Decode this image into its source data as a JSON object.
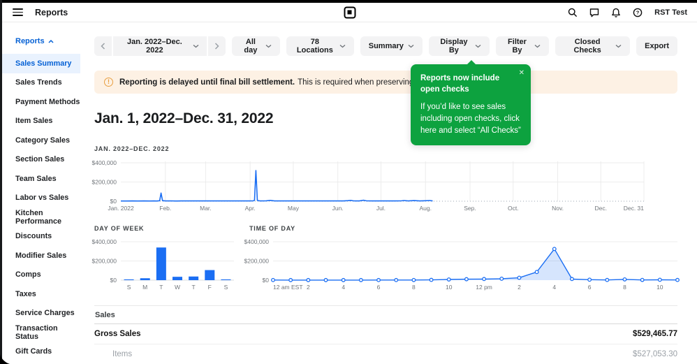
{
  "header": {
    "title": "Reports",
    "account": "RST Test"
  },
  "sidebar": {
    "section_label": "Reports",
    "selected": "Sales Summary",
    "items": [
      {
        "label": "Sales Summary"
      },
      {
        "label": "Sales Trends"
      },
      {
        "label": "Payment Methods"
      },
      {
        "label": "Item Sales"
      },
      {
        "label": "Category Sales"
      },
      {
        "label": "Section Sales"
      },
      {
        "label": "Team Sales"
      },
      {
        "label": "Labor vs Sales"
      },
      {
        "label": "Kitchen Performance"
      },
      {
        "label": "Discounts"
      },
      {
        "label": "Modifier Sales"
      },
      {
        "label": "Comps"
      },
      {
        "label": "Taxes"
      },
      {
        "label": "Service Charges"
      },
      {
        "label": "Transaction Status"
      },
      {
        "label": "Gift Cards"
      }
    ]
  },
  "toolbar": {
    "date_range": "Jan. 2022–Dec. 2022",
    "filters": [
      {
        "label": "All day"
      },
      {
        "label": "78 Locations"
      },
      {
        "label": "Summary"
      },
      {
        "label": "Display By"
      },
      {
        "label": "Filter By"
      },
      {
        "label": "Closed Checks"
      }
    ],
    "export_label": "Export"
  },
  "banner": {
    "bold": "Reporting is delayed until final bill settlement.",
    "text": "This is required when preserving the payment method"
  },
  "tooltip": {
    "title": "Reports now include open checks",
    "body": "If you’d like to see sales including open checks, click here and select “All Checks”",
    "close": "✕"
  },
  "page": {
    "heading": "Jan. 1, 2022–Dec. 31, 2022"
  },
  "chart_data": [
    {
      "type": "line",
      "title": "JAN. 2022–DEC. 2022",
      "ylim": [
        0,
        400000
      ],
      "y_ticks": [
        0,
        200000,
        400000
      ],
      "x_max": 364,
      "x_ticks": [
        {
          "d": 0,
          "label": "Jan. 2022"
        },
        {
          "d": 31,
          "label": "Feb."
        },
        {
          "d": 59,
          "label": "Mar."
        },
        {
          "d": 90,
          "label": "Apr."
        },
        {
          "d": 120,
          "label": "May"
        },
        {
          "d": 151,
          "label": "Jun."
        },
        {
          "d": 181,
          "label": "Jul."
        },
        {
          "d": 212,
          "label": "Aug."
        },
        {
          "d": 243,
          "label": "Sep."
        },
        {
          "d": 273,
          "label": "Oct."
        },
        {
          "d": 304,
          "label": "Nov."
        },
        {
          "d": 334,
          "label": "Dec."
        },
        {
          "d": 364,
          "label": "Dec. 31"
        }
      ],
      "points": [
        [
          0,
          2500
        ],
        [
          4,
          2000
        ],
        [
          8,
          3000
        ],
        [
          12,
          2200
        ],
        [
          16,
          2800
        ],
        [
          20,
          2400
        ],
        [
          23,
          3000
        ],
        [
          25,
          2500
        ],
        [
          27,
          5000
        ],
        [
          28,
          85000
        ],
        [
          29,
          6000
        ],
        [
          31,
          3000
        ],
        [
          35,
          4000
        ],
        [
          38,
          2500
        ],
        [
          42,
          3200
        ],
        [
          46,
          2600
        ],
        [
          50,
          3500
        ],
        [
          54,
          2800
        ],
        [
          58,
          3000
        ],
        [
          62,
          2600
        ],
        [
          66,
          3400
        ],
        [
          70,
          2800
        ],
        [
          74,
          3000
        ],
        [
          78,
          2600
        ],
        [
          82,
          3200
        ],
        [
          86,
          2800
        ],
        [
          90,
          3000
        ],
        [
          92,
          4000
        ],
        [
          93,
          8000
        ],
        [
          94,
          320000
        ],
        [
          95,
          7000
        ],
        [
          97,
          3000
        ],
        [
          101,
          3500
        ],
        [
          104,
          9000
        ],
        [
          107,
          3000
        ],
        [
          111,
          2800
        ],
        [
          115,
          3400
        ],
        [
          119,
          2800
        ],
        [
          123,
          3200
        ],
        [
          127,
          2700
        ],
        [
          131,
          3300
        ],
        [
          135,
          2800
        ],
        [
          139,
          3400
        ],
        [
          143,
          2900
        ],
        [
          147,
          3300
        ],
        [
          151,
          2800
        ],
        [
          155,
          3200
        ],
        [
          158,
          6000
        ],
        [
          160,
          9000
        ],
        [
          162,
          4000
        ],
        [
          166,
          3000
        ],
        [
          169,
          10000
        ],
        [
          171,
          4000
        ],
        [
          175,
          3000
        ],
        [
          179,
          3400
        ],
        [
          183,
          2900
        ],
        [
          187,
          3300
        ],
        [
          191,
          2800
        ],
        [
          195,
          3400
        ],
        [
          197,
          7000
        ],
        [
          200,
          3000
        ],
        [
          204,
          6500
        ],
        [
          208,
          3000
        ],
        [
          212,
          5000
        ],
        [
          215,
          7500
        ],
        [
          217,
          3000
        ]
      ]
    },
    {
      "type": "bar",
      "title": "DAY OF WEEK",
      "ylim": [
        0,
        400000
      ],
      "y_ticks": [
        0,
        200000,
        400000
      ],
      "categories": [
        "S",
        "M",
        "T",
        "W",
        "T",
        "F",
        "S"
      ],
      "values": [
        8000,
        20000,
        340000,
        35000,
        38000,
        105000,
        8000
      ]
    },
    {
      "type": "area",
      "title": "TIME OF DAY",
      "ylim": [
        0,
        400000
      ],
      "y_ticks": [
        0,
        200000,
        400000
      ],
      "x_labels": [
        {
          "h": 0,
          "label": "12 am EST"
        },
        {
          "h": 2,
          "label": "2"
        },
        {
          "h": 4,
          "label": "4"
        },
        {
          "h": 6,
          "label": "6"
        },
        {
          "h": 8,
          "label": "8"
        },
        {
          "h": 10,
          "label": "10"
        },
        {
          "h": 12,
          "label": "12 pm"
        },
        {
          "h": 14,
          "label": "2"
        },
        {
          "h": 16,
          "label": "4"
        },
        {
          "h": 18,
          "label": "6"
        },
        {
          "h": 20,
          "label": "8"
        },
        {
          "h": 22,
          "label": "10"
        }
      ],
      "values": [
        1200,
        900,
        900,
        900,
        900,
        900,
        1100,
        1100,
        1600,
        3000,
        7000,
        10000,
        12000,
        15000,
        25000,
        85000,
        325000,
        12000,
        5000,
        2000,
        8000,
        2500,
        4000,
        2000
      ]
    }
  ],
  "table": {
    "section": "Sales",
    "rows": [
      {
        "label": "Gross Sales",
        "value": "$529,465.77",
        "style": "bold"
      },
      {
        "label": "Items",
        "value": "$527,053.30",
        "style": "sub"
      }
    ]
  },
  "colors": {
    "chart_blue": "#1b6ef3",
    "link_blue": "#0561d5",
    "success_green": "#0da23f",
    "warning_orange": "#e89e3f",
    "banner_bg": "#fdf1e4",
    "selected_bg": "#e9f2fe"
  }
}
